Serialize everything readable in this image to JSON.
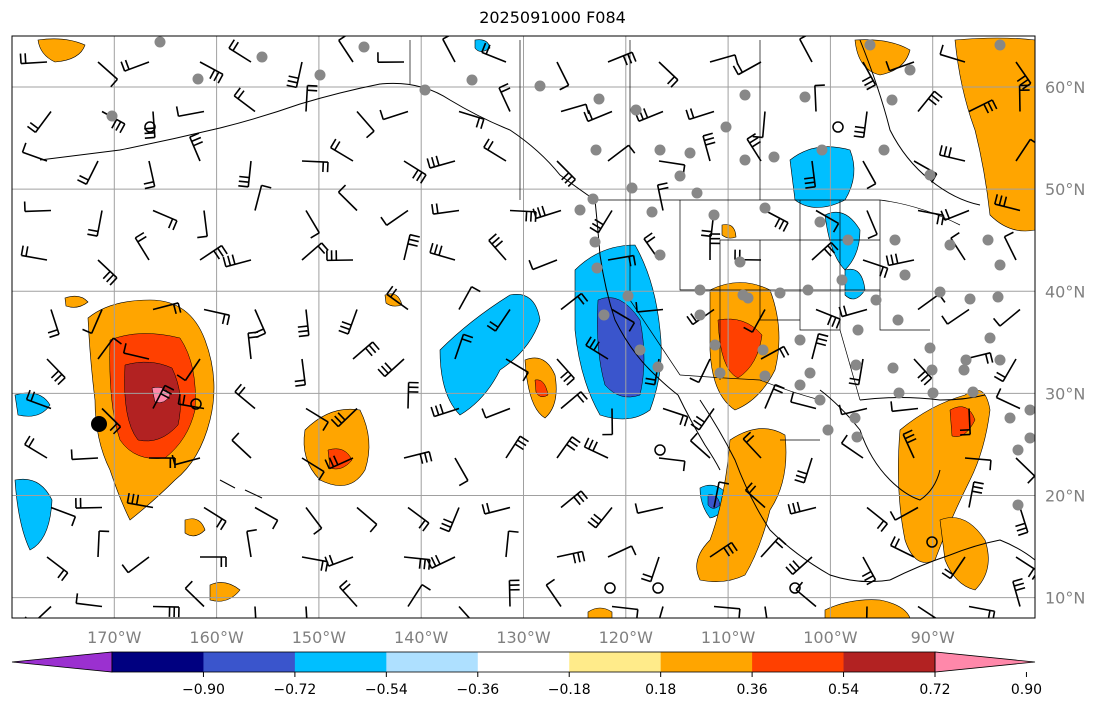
{
  "title": "2025091000 F084",
  "map": {
    "projection": "plate carree",
    "lon_range": [
      -180,
      -80
    ],
    "lat_range": [
      8,
      65
    ],
    "grid": true,
    "lon_ticks": [
      {
        "value": -170,
        "label": "170°W"
      },
      {
        "value": -160,
        "label": "160°W"
      },
      {
        "value": -150,
        "label": "150°W"
      },
      {
        "value": -140,
        "label": "140°W"
      },
      {
        "value": -130,
        "label": "130°W"
      },
      {
        "value": -120,
        "label": "120°W"
      },
      {
        "value": -110,
        "label": "110°W"
      },
      {
        "value": -100,
        "label": "100°W"
      },
      {
        "value": -90,
        "label": "90°W"
      }
    ],
    "lat_ticks": [
      {
        "value": 60,
        "label": "60°N"
      },
      {
        "value": 50,
        "label": "50°N"
      },
      {
        "value": 40,
        "label": "40°N"
      },
      {
        "value": 30,
        "label": "30°N"
      },
      {
        "value": 20,
        "label": "20°N"
      },
      {
        "value": 10,
        "label": "10°N"
      }
    ],
    "layers": [
      "coastlines",
      "borders",
      "states",
      "filled-contours",
      "wind-barbs",
      "station-dots"
    ]
  },
  "colorbar": {
    "extend": "both",
    "levels": [
      -1.08,
      -0.9,
      -0.72,
      -0.54,
      -0.36,
      -0.18,
      0.18,
      0.36,
      0.54,
      0.72,
      0.9,
      1.08
    ],
    "colors": [
      "#9b30d0",
      "#000080",
      "#3a55cc",
      "#00bfff",
      "#aee0ff",
      "#ffffff",
      "#ffeb8a",
      "#ffa500",
      "#ff4000",
      "#b22222",
      "#ff88aa"
    ],
    "tick_labels": [
      "−0.90",
      "−0.72",
      "−0.54",
      "−0.36",
      "−0.18",
      "0.18",
      "0.36",
      "0.54",
      "0.72",
      "0.90"
    ]
  },
  "colors": {
    "land_line": "#000000",
    "grid": "#a0a0a0",
    "dot": "#888888"
  }
}
